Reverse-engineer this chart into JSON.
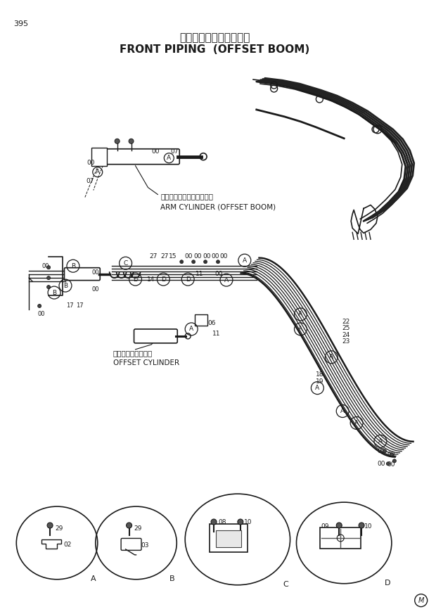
{
  "title_japanese": "フロント配管（側溝掘）",
  "title_english": "FRONT PIPING  (OFFSET BOOM)",
  "page_number": "395",
  "background_color": "#ffffff",
  "line_color": "#1a1a1a",
  "text_color": "#1a1a1a",
  "fig_width": 6.2,
  "fig_height": 8.73,
  "dpi": 100,
  "arm_cylinder_ja": "アームシリンダ（側溝掘）",
  "arm_cylinder_en": "ARM CYLINDER (OFFSET BOOM)",
  "offset_cylinder_ja": "オフセットシリンダ",
  "offset_cylinder_en": "OFFSET CYLINDER"
}
